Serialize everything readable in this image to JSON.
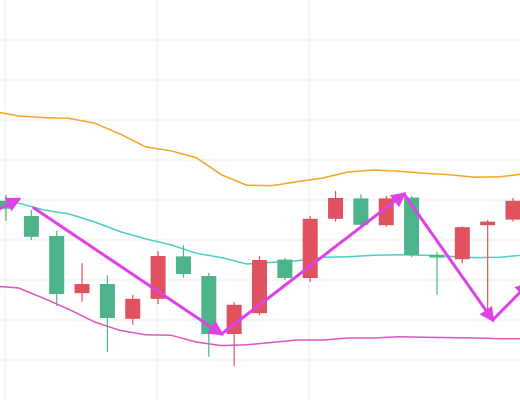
{
  "colors": {
    "background": "#ffffff",
    "grid": "#ececec",
    "up_candle": "#e05260",
    "down_candle": "#4db38a",
    "upper_band": "#f5a524",
    "middle_band": "#47d1c0",
    "lower_band": "#e055c0",
    "arrow": "#e040e8"
  },
  "chart_data": {
    "type": "candlestick",
    "title": "",
    "xlabel": "",
    "ylabel": "",
    "ylim": [
      0,
      100
    ],
    "grid": true,
    "legend": "none",
    "candles": [
      {
        "open": 49.8,
        "high": 51.2,
        "low": 44.8,
        "close": 47.8
      },
      {
        "open": 46.0,
        "high": 47.5,
        "low": 40.0,
        "close": 40.8
      },
      {
        "open": 41.0,
        "high": 42.3,
        "low": 23.5,
        "close": 26.5
      },
      {
        "open": 26.7,
        "high": 34.2,
        "low": 24.5,
        "close": 29.0
      },
      {
        "open": 29.0,
        "high": 31.2,
        "low": 12.0,
        "close": 20.5
      },
      {
        "open": 20.3,
        "high": 26.3,
        "low": 18.8,
        "close": 25.3
      },
      {
        "open": 25.3,
        "high": 37.2,
        "low": 24.0,
        "close": 36.0
      },
      {
        "open": 35.9,
        "high": 38.7,
        "low": 30.6,
        "close": 31.5
      },
      {
        "open": 31.0,
        "high": 31.8,
        "low": 10.8,
        "close": 16.5
      },
      {
        "open": 16.5,
        "high": 24.5,
        "low": 8.5,
        "close": 23.8
      },
      {
        "open": 21.7,
        "high": 36.0,
        "low": 21.2,
        "close": 35.0
      },
      {
        "open": 35.1,
        "high": 35.5,
        "low": 30.0,
        "close": 30.5
      },
      {
        "open": 30.5,
        "high": 46.0,
        "low": 29.5,
        "close": 45.3
      },
      {
        "open": 45.3,
        "high": 52.3,
        "low": 44.6,
        "close": 50.5
      },
      {
        "open": 50.4,
        "high": 51.4,
        "low": 43.6,
        "close": 43.8
      },
      {
        "open": 43.7,
        "high": 51.0,
        "low": 43.3,
        "close": 50.4
      },
      {
        "open": 50.6,
        "high": 51.0,
        "low": 35.7,
        "close": 36.3
      },
      {
        "open": 36.3,
        "high": 37.0,
        "low": 26.3,
        "close": 35.6
      },
      {
        "open": 35.2,
        "high": 43.4,
        "low": 34.2,
        "close": 43.2
      },
      {
        "open": 43.7,
        "high": 45.0,
        "low": 21.2,
        "close": 44.6
      },
      {
        "open": 45.1,
        "high": 50.5,
        "low": 44.6,
        "close": 49.8
      }
    ],
    "bands": {
      "upper": [
        72.2,
        71.0,
        70.6,
        70.4,
        69.2,
        66.5,
        63.3,
        62.3,
        60.6,
        56.3,
        53.7,
        53.6,
        54.6,
        55.5,
        57.0,
        57.5,
        57.2,
        56.7,
        56.3,
        55.7,
        55.8,
        56.6
      ],
      "middle": [
        49.3,
        49.2,
        47.5,
        46.5,
        44.5,
        42.1,
        40.3,
        38.8,
        36.7,
        35.6,
        34.0,
        34.4,
        34.8,
        35.7,
        35.8,
        36.2,
        36.3,
        36.2,
        35.9,
        35.6,
        35.7,
        36.3
      ],
      "lower": [
        28.5,
        28.0,
        25.4,
        22.6,
        19.5,
        17.4,
        16.3,
        16.2,
        14.5,
        13.6,
        13.8,
        14.4,
        15.0,
        15.0,
        15.5,
        15.5,
        15.8,
        15.7,
        15.6,
        15.5,
        15.3,
        15.3
      ]
    },
    "arrows": [
      {
        "from": [
          -0.5,
          47.0
        ],
        "to": [
          0.5,
          50.2
        ]
      },
      {
        "from": [
          1.1,
          48.0
        ],
        "to": [
          8.5,
          16.5
        ]
      },
      {
        "from": [
          8.5,
          16.5
        ],
        "to": [
          15.7,
          51.5
        ]
      },
      {
        "from": [
          15.7,
          51.5
        ],
        "to": [
          19.2,
          20.0
        ]
      },
      {
        "from": [
          19.2,
          20.0
        ],
        "to": [
          20.6,
          29.0
        ]
      }
    ]
  }
}
